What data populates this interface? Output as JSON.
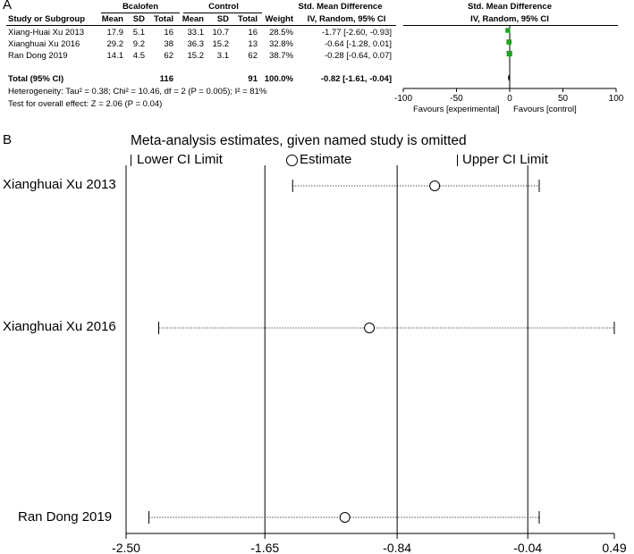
{
  "panel_a": {
    "label": "A",
    "headers": {
      "group1": "Bcalofen",
      "group2": "Control",
      "smd_top": "Std. Mean Difference",
      "smd_sub": "IV, Random, 95% CI",
      "plot_top": "Std. Mean Difference",
      "plot_sub": "IV, Random, 95% CI",
      "study": "Study or Subgroup",
      "mean1": "Mean",
      "sd1": "SD",
      "total1": "Total",
      "mean2": "Mean",
      "sd2": "SD",
      "total2": "Total",
      "weight": "Weight"
    },
    "rows": [
      {
        "study": "Xiang-Huai Xu 2013",
        "mean1": "17.9",
        "sd1": "5.1",
        "total1": "16",
        "mean2": "33.1",
        "sd2": "10.7",
        "total2": "16",
        "weight": "28.5%",
        "ci": "-1.77 [-2.60, -0.93]"
      },
      {
        "study": "Xianghuai Xu 2016",
        "mean1": "29.2",
        "sd1": "9.2",
        "total1": "38",
        "mean2": "36.3",
        "sd2": "15.2",
        "total2": "13",
        "weight": "32.8%",
        "ci": "-0.64 [-1.28, 0.01]"
      },
      {
        "study": "Ran Dong 2019",
        "mean1": "14.1",
        "sd1": "4.5",
        "total1": "62",
        "mean2": "15.2",
        "sd2": "3.1",
        "total2": "62",
        "weight": "38.7%",
        "ci": "-0.28 [-0.64, 0.07]"
      }
    ],
    "total": {
      "label": "Total (95% CI)",
      "total1": "116",
      "total2": "91",
      "weight": "100.0%",
      "ci": "-0.82 [-1.61, -0.04]"
    },
    "heterogeneity": "Heterogeneity: Tau² = 0.38; Chi² = 10.46, df = 2 (P = 0.005); I² = 81%",
    "overall_effect": "Test for overall effect: Z = 2.06 (P = 0.04)",
    "favours_left": "Favours [experimental]",
    "favours_right": "Favours [control]",
    "marker_color": "#1aa81a"
  },
  "chart_data": [
    {
      "type": "forest",
      "axis_ticks": [
        -100,
        -50,
        0,
        50,
        100
      ],
      "xlim": [
        -100,
        100
      ],
      "studies": [
        {
          "name": "Xiang-Huai Xu 2013",
          "estimate": -1.77,
          "lower": -2.6,
          "upper": -0.93,
          "weight": 28.5
        },
        {
          "name": "Xianghuai Xu 2016",
          "estimate": -0.64,
          "lower": -1.28,
          "upper": 0.01,
          "weight": 32.8
        },
        {
          "name": "Ran Dong 2019",
          "estimate": -0.28,
          "lower": -0.64,
          "upper": 0.07,
          "weight": 38.7
        }
      ],
      "pooled": {
        "estimate": -0.82,
        "lower": -1.61,
        "upper": -0.04
      }
    },
    {
      "type": "sensitivity",
      "label": "B",
      "title": "Meta-analysis estimates, given named study is omitted",
      "legend": [
        "Lower CI Limit",
        "Estimate",
        "Upper CI Limit"
      ],
      "x_ticks": [
        "-2.50",
        "-1.65",
        "-0.84",
        "-0.04",
        "0.49"
      ],
      "xlim": [
        -2.5,
        0.49
      ],
      "reference_lines": [
        -1.65,
        -0.84,
        -0.04
      ],
      "studies": [
        {
          "name": "Xianghuai Xu 2013",
          "lower": -1.48,
          "estimate": -0.61,
          "upper": 0.03
        },
        {
          "name": "Xianghuai Xu 2016",
          "lower": -2.3,
          "estimate": -1.01,
          "upper": 0.49
        },
        {
          "name": "Ran Dong 2019",
          "lower": -2.36,
          "estimate": -1.16,
          "upper": 0.03
        }
      ]
    }
  ]
}
